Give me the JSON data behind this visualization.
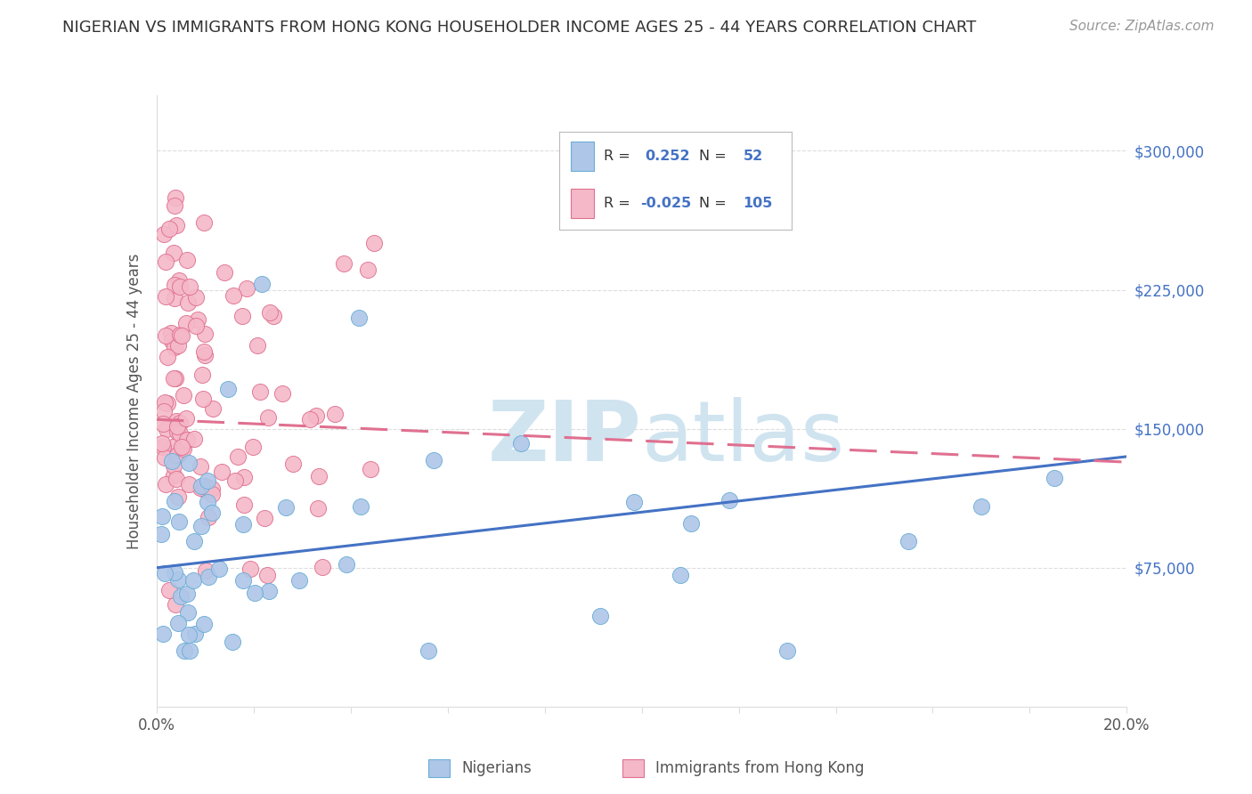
{
  "title": "NIGERIAN VS IMMIGRANTS FROM HONG KONG HOUSEHOLDER INCOME AGES 25 - 44 YEARS CORRELATION CHART",
  "source": "Source: ZipAtlas.com",
  "ylabel": "Householder Income Ages 25 - 44 years",
  "xlim": [
    0.0,
    0.2
  ],
  "ylim": [
    0,
    330000
  ],
  "ytick_positions": [
    75000,
    150000,
    225000,
    300000
  ],
  "ytick_labels": [
    "$75,000",
    "$150,000",
    "$225,000",
    "$300,000"
  ],
  "r_nigerian": 0.252,
  "n_nigerian": 52,
  "r_hongkong": -0.025,
  "n_hongkong": 105,
  "nigerian_color": "#aec6e8",
  "nigerian_edge_color": "#6baed6",
  "nigerian_line_color": "#4472c4",
  "hongkong_color": "#f4b8c8",
  "hongkong_edge_color": "#e07090",
  "hongkong_line_color": "#e07090",
  "background_color": "#ffffff",
  "watermark_color": "#d0e4f0",
  "grid_color": "#dddddd",
  "title_color": "#333333",
  "source_color": "#999999",
  "ylabel_color": "#555555",
  "ytick_color": "#4472c4",
  "xtick_color": "#555555",
  "legend_border_color": "#bbbbbb",
  "legend_text_color": "#333333",
  "legend_value_color": "#4472c4",
  "nigerian_line_y0": 75000,
  "nigerian_line_y1": 135000,
  "hongkong_line_y0": 155000,
  "hongkong_line_y1": 132000
}
